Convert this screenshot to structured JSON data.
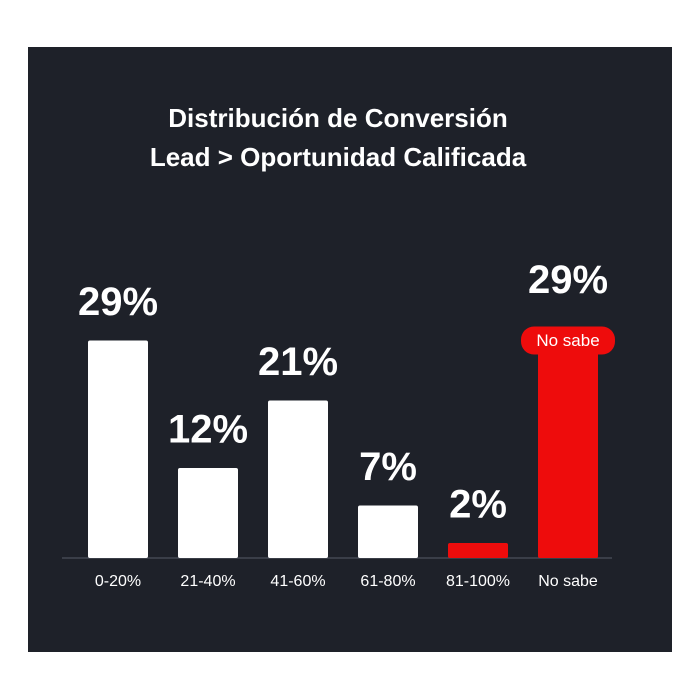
{
  "chart_data": {
    "type": "bar",
    "title": [
      "Distribución de Conversión",
      "Lead > Oportunidad Calificada"
    ],
    "categories": [
      "0-20%",
      "21-40%",
      "41-60%",
      "61-80%",
      "81-100%",
      "No sabe"
    ],
    "values": [
      29,
      12,
      21,
      7,
      2,
      29
    ],
    "value_labels": [
      "29%",
      "12%",
      "21%",
      "7%",
      "2%",
      "29%"
    ],
    "colors": [
      "#ffffff",
      "#ffffff",
      "#ffffff",
      "#ffffff",
      "#ee0c0c",
      "#ee0c0c"
    ],
    "badge": "No sabe",
    "ylim": [
      0,
      30
    ]
  }
}
